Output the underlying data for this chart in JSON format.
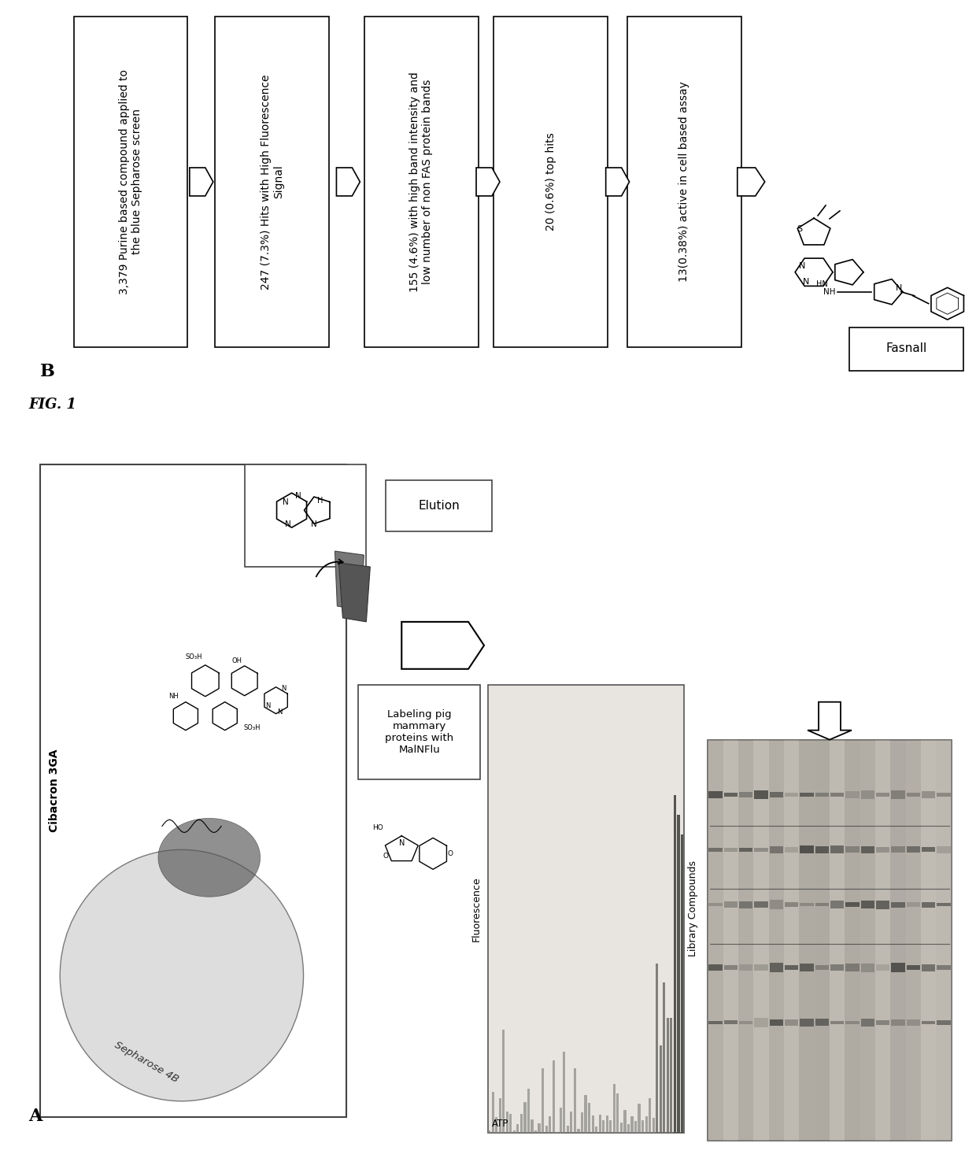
{
  "fig_label": "FIG. 1",
  "panel_A_label": "A",
  "panel_B_label": "B",
  "box_facecolor": "white",
  "box_edgecolor": "black",
  "arrow_color": "black",
  "bg_color": "white",
  "boxes": [
    "3,379 Purine based compound applied to\nthe blue Sepharose screen",
    "247 (7.3%) Hits with High Fluorescence\nSignal",
    "155 (4.6%) with high band intensity and\nlow number of non FAS protein bands",
    "20 (0.6%) top hits",
    "13(0.38%) active in cell based assay"
  ],
  "fasnall_label": "Fasnall",
  "elution_label": "Elution",
  "cibacron_label": "Cibacron 3GA",
  "sepharose_label": "Sepharose 4B",
  "labeling_label": "Labeling pig\nmammary\nproteins with\nMalNFlu",
  "library_label": "Library Compounds",
  "atp_label": "ATP",
  "fluorescence_label": "Fluorescence"
}
